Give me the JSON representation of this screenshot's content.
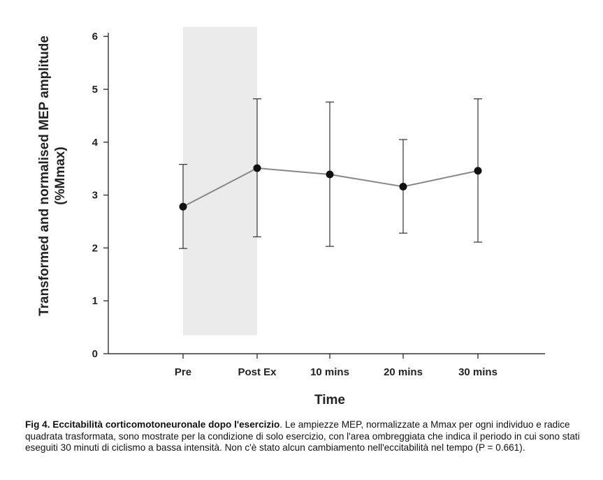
{
  "chart_data": {
    "type": "line",
    "title": "",
    "xlabel": "Time",
    "ylabel": "Transformed and normalised MEP amplitude",
    "ylabel_line2": "(%Mmax)",
    "categories": [
      "Pre",
      "Post Ex",
      "10 mins",
      "20 mins",
      "30 mins"
    ],
    "series": [
      {
        "name": "Exercise only",
        "values": [
          2.78,
          3.51,
          3.39,
          3.16,
          3.46
        ],
        "error_low": [
          1.99,
          2.21,
          2.03,
          2.28,
          2.11
        ],
        "error_high": [
          3.58,
          4.82,
          4.76,
          4.05,
          4.82
        ]
      }
    ],
    "yticks": [
      0,
      1,
      2,
      3,
      4,
      5,
      6
    ],
    "ylim": [
      0,
      6.2
    ],
    "shaded_region": {
      "from_category": "Pre",
      "to_category": "Post Ex",
      "y_range": [
        0.35,
        6.18
      ],
      "color": "#ebebeb"
    },
    "colors": {
      "line": "#888888",
      "marker": "#111111",
      "axis": "#333333"
    },
    "grid": false
  },
  "caption": {
    "bold": "Fig 4. Eccitabilità corticomotoneuronale dopo l'esercizio",
    "text": ". Le ampiezze MEP, normalizzate a Mmax per ogni individuo e radice quadrata trasformata, sono mostrate per la condizione di solo esercizio, con l'area ombreggiata che indica il periodo in cui sono stati eseguiti 30 minuti di ciclismo a bassa intensità. Non c'è stato alcun cambiamento nell'eccitabilità nel tempo (P = 0.661)."
  }
}
